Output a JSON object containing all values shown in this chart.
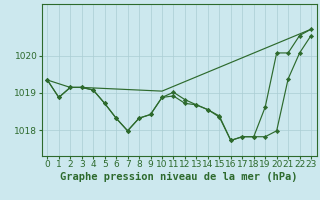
{
  "title": "Graphe pression niveau de la mer (hPa)",
  "bg_color": "#cce8ee",
  "line_color": "#2d6a2d",
  "grid_color": "#aacdd4",
  "ylim": [
    1017.3,
    1021.4
  ],
  "yticks": [
    1018,
    1019,
    1020
  ],
  "xlim": [
    -0.5,
    23.5
  ],
  "xticks": [
    0,
    1,
    2,
    3,
    4,
    5,
    6,
    7,
    8,
    9,
    10,
    11,
    12,
    13,
    14,
    15,
    16,
    17,
    18,
    19,
    20,
    21,
    22,
    23
  ],
  "series": [
    {
      "x": [
        0,
        1,
        2,
        3,
        4,
        5,
        6,
        7,
        8,
        9,
        10,
        11,
        12,
        13,
        14,
        15,
        16,
        17,
        18,
        19,
        20,
        21,
        22,
        23
      ],
      "y": [
        1019.35,
        1018.88,
        1019.15,
        1019.15,
        1019.08,
        1018.72,
        1018.32,
        1017.98,
        1018.32,
        1018.42,
        1018.88,
        1018.92,
        1018.72,
        1018.68,
        1018.55,
        1018.35,
        1017.72,
        1017.82,
        1017.82,
        1017.82,
        1017.98,
        1019.38,
        1020.08,
        1020.55
      ]
    },
    {
      "x": [
        0,
        1,
        2,
        3,
        4,
        5,
        6,
        7,
        8,
        9,
        10,
        11,
        12,
        13,
        14,
        15,
        16,
        17,
        18,
        19,
        20,
        21,
        22,
        23
      ],
      "y": [
        1019.35,
        1018.88,
        1019.15,
        1019.15,
        1019.08,
        1018.72,
        1018.32,
        1017.98,
        1018.32,
        1018.42,
        1018.88,
        1019.02,
        1018.82,
        1018.68,
        1018.55,
        1018.38,
        1017.72,
        1017.82,
        1017.82,
        1018.62,
        1020.08,
        1020.08,
        1020.55,
        1020.72
      ]
    },
    {
      "x": [
        0,
        2,
        3,
        10,
        23
      ],
      "y": [
        1019.35,
        1019.15,
        1019.15,
        1019.05,
        1020.72
      ]
    }
  ],
  "title_fontsize": 7.5,
  "tick_fontsize": 6.5
}
